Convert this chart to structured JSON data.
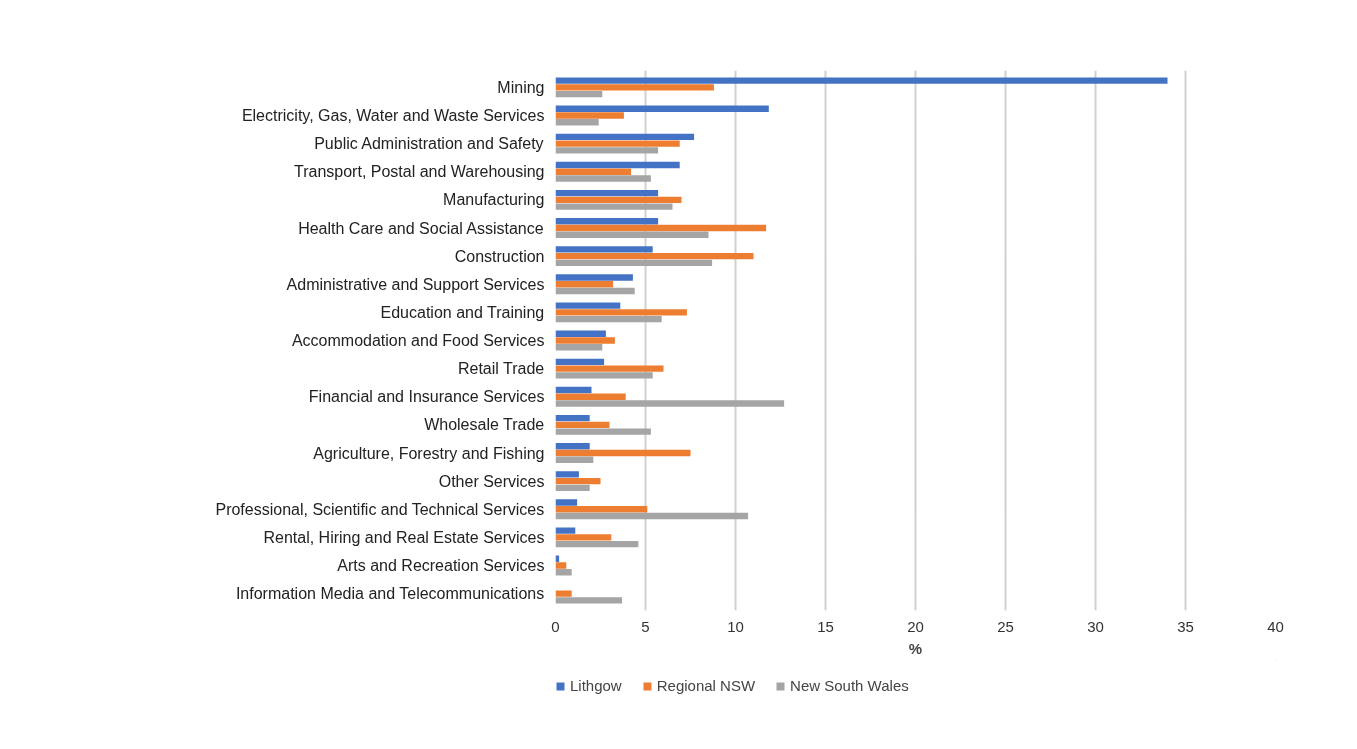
{
  "chart_data": {
    "type": "bar",
    "orientation": "horizontal",
    "xlabel": "%",
    "categories": [
      "Mining",
      "Electricity, Gas, Water and Waste Services",
      "Public Administration and Safety",
      "Transport, Postal and Warehousing",
      "Manufacturing",
      "Health Care and Social Assistance",
      "Construction",
      "Administrative and Support Services",
      "Education and Training",
      "Accommodation and Food Services",
      "Retail Trade",
      "Financial and Insurance Services",
      "Wholesale Trade",
      "Agriculture, Forestry and Fishing",
      "Other Services",
      "Professional, Scientific and Technical Services",
      "Rental, Hiring and Real Estate Services",
      "Arts and Recreation Services",
      "Information Media and Telecommunications"
    ],
    "series": [
      {
        "name": "Lithgow",
        "color": "#4472c4",
        "values": [
          34.0,
          11.85,
          7.7,
          6.9,
          5.7,
          5.7,
          5.4,
          4.3,
          3.6,
          2.8,
          2.7,
          2.0,
          1.9,
          1.9,
          1.3,
          1.2,
          1.1,
          0.2,
          null
        ]
      },
      {
        "name": "Regional NSW",
        "color": "#ed7d31",
        "values": [
          8.8,
          3.8,
          6.9,
          4.2,
          7.0,
          11.7,
          11.0,
          3.2,
          7.3,
          3.3,
          6.0,
          3.9,
          3.0,
          7.5,
          2.5,
          5.1,
          3.1,
          0.6,
          0.9
        ]
      },
      {
        "name": "New South Wales",
        "color": "#a5a5a5",
        "values": [
          2.6,
          2.4,
          5.7,
          5.3,
          6.5,
          8.5,
          8.7,
          4.4,
          5.9,
          2.6,
          5.4,
          12.7,
          5.3,
          2.1,
          1.9,
          10.7,
          4.6,
          0.9,
          3.7
        ]
      }
    ],
    "xlim": [
      0,
      40
    ],
    "xticks": [
      0,
      5,
      10,
      15,
      20,
      25,
      30,
      35,
      40
    ],
    "grid": "x",
    "legend": "bottom left"
  }
}
